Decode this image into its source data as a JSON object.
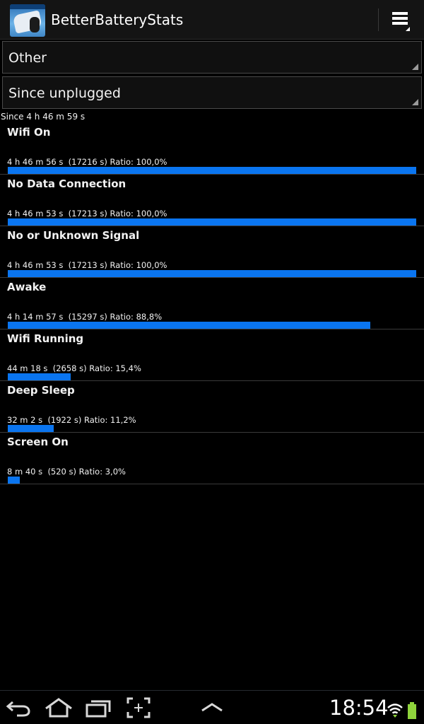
{
  "app": {
    "title": "BetterBatteryStats"
  },
  "filters": {
    "stat_type": "Other",
    "reference": "Since unplugged"
  },
  "since_label": "Since 4 h 46 m 59 s",
  "rows": [
    {
      "label": "Wifi On",
      "duration": "4 h 46 m 56 s",
      "seconds": "(17216 s)",
      "ratio_text": "Ratio: 100,0%",
      "ratio": 100.0
    },
    {
      "label": "No Data Connection",
      "duration": "4 h 46 m 53 s",
      "seconds": "(17213 s)",
      "ratio_text": "Ratio: 100,0%",
      "ratio": 100.0
    },
    {
      "label": "No or Unknown Signal",
      "duration": "4 h 46 m 53 s",
      "seconds": "(17213 s)",
      "ratio_text": "Ratio: 100,0%",
      "ratio": 100.0
    },
    {
      "label": "Awake",
      "duration": "4 h 14 m 57 s",
      "seconds": "(15297 s)",
      "ratio_text": "Ratio: 88,8%",
      "ratio": 88.8
    },
    {
      "label": "Wifi Running",
      "duration": "44 m 18 s",
      "seconds": "(2658 s)",
      "ratio_text": "Ratio: 15,4%",
      "ratio": 15.4
    },
    {
      "label": "Deep Sleep",
      "duration": "32 m 2 s",
      "seconds": "(1922 s)",
      "ratio_text": "Ratio: 11,2%",
      "ratio": 11.2
    },
    {
      "label": "Screen On",
      "duration": "8 m 40 s",
      "seconds": "(520 s)",
      "ratio_text": "Ratio: 3,0%",
      "ratio": 3.0
    }
  ],
  "statusbar": {
    "time": "18:54"
  },
  "colors": {
    "accent": "#0a75f0",
    "battery": "#8fd43c",
    "background": "#000000"
  },
  "icons": {
    "app": "betterbatterystats-app-icon",
    "menu": "overflow-menu-icon",
    "back": "back-icon",
    "home": "home-icon",
    "recent": "recent-apps-icon",
    "screenshot": "screenshot-icon",
    "up": "chevron-up-icon",
    "wifi": "wifi-icon",
    "battery": "battery-icon"
  }
}
